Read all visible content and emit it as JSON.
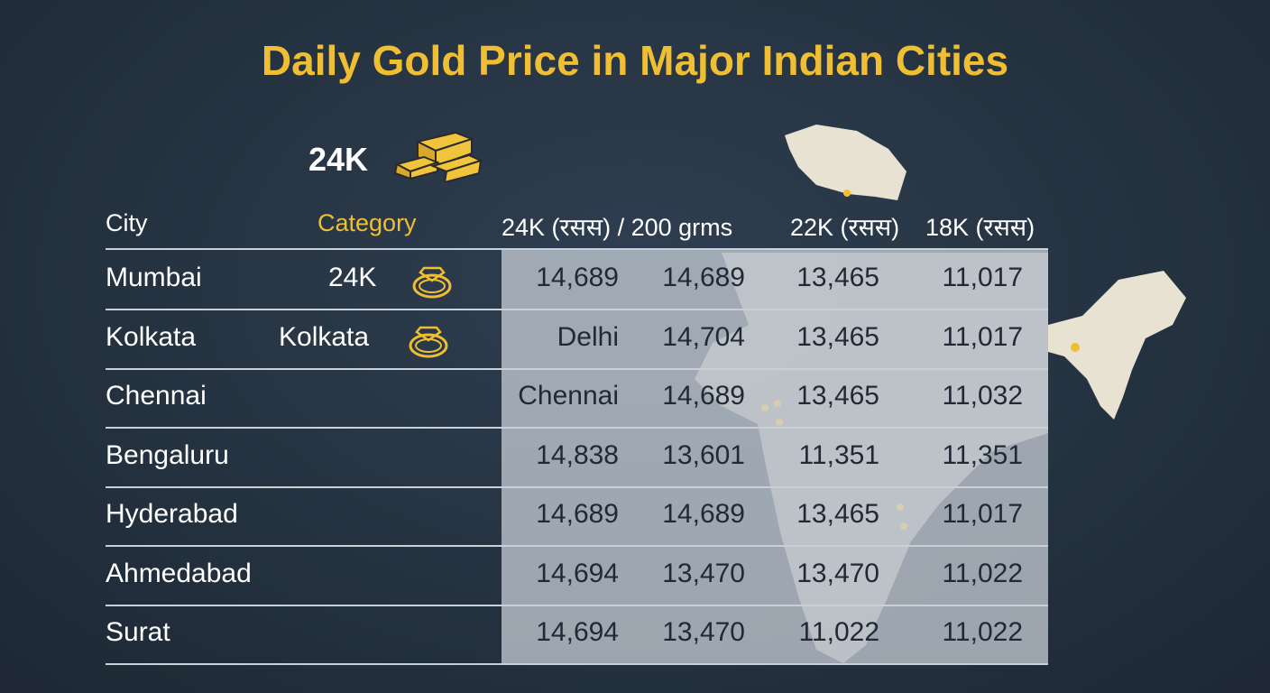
{
  "title": "Daily Gold Price in Major Indian Cities",
  "badge": {
    "label": "24K",
    "icon": "gold-bars-icon"
  },
  "colors": {
    "accent": "#f0be32",
    "background": "#263445"
  },
  "headers": {
    "city": "City",
    "category": "Category",
    "col1": "24K (रसस) / 200 grms",
    "col2": "22K (रसस)",
    "col3": "18K (रसस)"
  },
  "rows": [
    {
      "city": "Mumbai",
      "category": "24K",
      "icon": "ring-icon",
      "v": [
        "14,689",
        "14,689",
        "13,465",
        "11,017"
      ]
    },
    {
      "city": "Kolkata",
      "category": "Kolkata",
      "icon": "ring-icon",
      "v": [
        "Delhi",
        "14,704",
        "13,465",
        "11,017"
      ]
    },
    {
      "city": "Chennai",
      "category": "",
      "v": [
        "Chennai",
        "14,689",
        "13,465",
        "11,032"
      ]
    },
    {
      "city": "Bengaluru",
      "category": "",
      "v": [
        "14,838",
        "13,601",
        "11,351",
        "11,351"
      ]
    },
    {
      "city": "Hyderabad",
      "category": "",
      "v": [
        "14,689",
        "14,689",
        "13,465",
        "11,017"
      ]
    },
    {
      "city": "Ahmedabad",
      "category": "",
      "v": [
        "14,694",
        "13,470",
        "13,470",
        "11,022"
      ]
    },
    {
      "city": "Surat",
      "category": "",
      "v": [
        "14,694",
        "13,470",
        "11,022",
        "11,022"
      ]
    }
  ]
}
